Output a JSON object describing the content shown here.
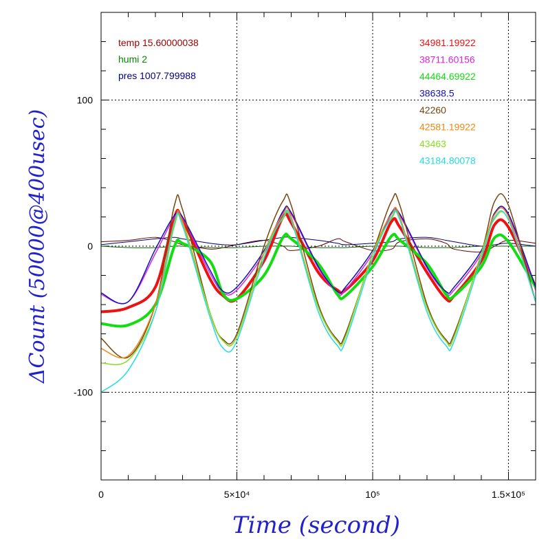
{
  "chart_data": {
    "type": "line",
    "title": "",
    "xlabel": "Time (second)",
    "ylabel": "ΔCount (50000@400usec)",
    "xlim": [
      0,
      160000
    ],
    "ylim": [
      -160,
      160
    ],
    "x_ticks": [
      {
        "value": 0,
        "label": "0"
      },
      {
        "value": 50000,
        "label": "5×10⁴"
      },
      {
        "value": 100000,
        "label": "10⁵"
      },
      {
        "value": 150000,
        "label": "1.5×10⁵"
      }
    ],
    "y_ticks": [
      {
        "value": 100,
        "label": "100"
      },
      {
        "value": 0,
        "label": "0"
      },
      {
        "value": -100,
        "label": "-100"
      }
    ],
    "grid": true,
    "env_legend": [
      {
        "text": "temp 15.60000038",
        "color": "#990000"
      },
      {
        "text": "humi 2",
        "color": "#008800"
      },
      {
        "text": "pres 1007.799988",
        "color": "#000080"
      }
    ],
    "series_legend_position": "top-right",
    "x": [
      0,
      10000,
      20000,
      27000,
      30000,
      40000,
      45000,
      50000,
      60000,
      67000,
      70000,
      80000,
      87000,
      90000,
      100000,
      107000,
      110000,
      120000,
      127000,
      130000,
      140000,
      145000,
      150000,
      160000
    ],
    "series": [
      {
        "name": "34981.19922",
        "color": "#ee1111",
        "width": 4,
        "values": [
          -45,
          -42,
          -28,
          20,
          18,
          -22,
          -34,
          -36,
          -10,
          20,
          16,
          -18,
          -30,
          -30,
          -10,
          17,
          13,
          -18,
          -36,
          -34,
          -10,
          15,
          13,
          -28
        ]
      },
      {
        "name": "38711.60156",
        "color": "#dd22dd",
        "width": 1.5,
        "values": [
          -33,
          -38,
          -5,
          20,
          19,
          -18,
          -32,
          -30,
          -5,
          23,
          22,
          -15,
          -32,
          -30,
          -5,
          22,
          21,
          -15,
          -32,
          -30,
          -5,
          22,
          21,
          -30
        ]
      },
      {
        "name": "44464.69922",
        "color": "#11dd11",
        "width": 4,
        "values": [
          -53,
          -54,
          -40,
          0,
          2,
          -10,
          -33,
          -36,
          -20,
          6,
          5,
          -12,
          -33,
          -34,
          -14,
          7,
          4,
          -12,
          -33,
          -34,
          -14,
          6,
          3,
          -28
        ]
      },
      {
        "name": "38638.5",
        "color": "#1111bb",
        "width": 1.5,
        "values": [
          -32,
          -38,
          -2,
          21,
          20,
          -16,
          -31,
          -28,
          -3,
          24,
          23,
          -14,
          -31,
          -28,
          -3,
          23,
          22,
          -14,
          -31,
          -28,
          -3,
          23,
          22,
          -28
        ]
      },
      {
        "name": "42260",
        "color": "#774411",
        "width": 1.5,
        "values": [
          -63,
          -76,
          -40,
          28,
          25,
          -45,
          -64,
          -60,
          0,
          31,
          28,
          -40,
          -64,
          -60,
          -5,
          31,
          28,
          -40,
          -64,
          -60,
          -5,
          31,
          28,
          -38
        ]
      },
      {
        "name": "42581.19922",
        "color": "#ee8811",
        "width": 1.5,
        "values": [
          -70,
          -75,
          -40,
          17,
          17,
          -45,
          -65,
          -62,
          -5,
          22,
          20,
          -42,
          -65,
          -62,
          -5,
          22,
          20,
          -42,
          -65,
          -62,
          -5,
          22,
          20,
          -38
        ]
      },
      {
        "name": "43463",
        "color": "#88dd22",
        "width": 1.5,
        "values": [
          -80,
          -78,
          -45,
          14,
          15,
          -45,
          -65,
          -62,
          -5,
          19,
          18,
          -42,
          -65,
          -62,
          -5,
          19,
          18,
          -42,
          -65,
          -62,
          -5,
          19,
          18,
          -38
        ]
      },
      {
        "name": "43184.80078",
        "color": "#22dddd",
        "width": 1.5,
        "values": [
          -100,
          -85,
          -45,
          16,
          14,
          -48,
          -70,
          -65,
          -8,
          20,
          18,
          -45,
          -68,
          -65,
          -8,
          20,
          18,
          -45,
          -68,
          -65,
          -8,
          20,
          18,
          -38
        ]
      }
    ],
    "env_lines": [
      {
        "name": "temp",
        "color": "#660000",
        "values": [
          3,
          4,
          6,
          3,
          1,
          -2,
          -1,
          1,
          4,
          0,
          -3,
          0,
          5,
          3,
          -3,
          -2,
          3,
          5,
          2,
          -2,
          -4,
          0,
          4,
          2
        ]
      },
      {
        "name": "humi",
        "color": "#006600",
        "values": [
          0,
          -1,
          -1,
          0,
          0,
          -1,
          -1,
          -1,
          0,
          0,
          0,
          -1,
          -1,
          -1,
          0,
          0,
          0,
          -1,
          -1,
          -1,
          0,
          0,
          0,
          0
        ]
      },
      {
        "name": "pres",
        "color": "#000066",
        "values": [
          1,
          3,
          5,
          6,
          5,
          2,
          1,
          1,
          4,
          6,
          6,
          4,
          2,
          1,
          2,
          3,
          5,
          6,
          4,
          3,
          0,
          1,
          2,
          0
        ]
      }
    ]
  }
}
